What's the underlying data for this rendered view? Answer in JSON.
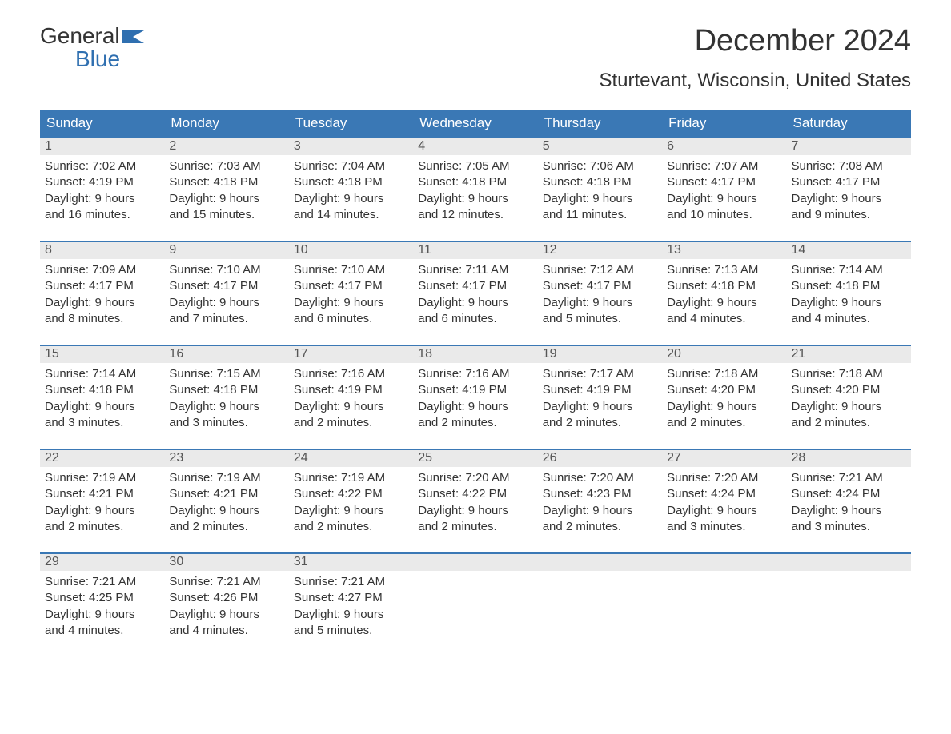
{
  "logo": {
    "word1": "General",
    "word2": "Blue",
    "icon_color": "#2f6fb0"
  },
  "title": "December 2024",
  "location": "Sturtevant, Wisconsin, United States",
  "colors": {
    "header_bg": "#3a78b5",
    "header_text": "#ffffff",
    "daynum_bg": "#eaeaea",
    "daynum_border": "#3a78b5",
    "body_text": "#333333",
    "page_bg": "#ffffff"
  },
  "day_headers": [
    "Sunday",
    "Monday",
    "Tuesday",
    "Wednesday",
    "Thursday",
    "Friday",
    "Saturday"
  ],
  "weeks": [
    [
      {
        "n": "1",
        "sunrise": "Sunrise: 7:02 AM",
        "sunset": "Sunset: 4:19 PM",
        "day1": "Daylight: 9 hours",
        "day2": "and 16 minutes."
      },
      {
        "n": "2",
        "sunrise": "Sunrise: 7:03 AM",
        "sunset": "Sunset: 4:18 PM",
        "day1": "Daylight: 9 hours",
        "day2": "and 15 minutes."
      },
      {
        "n": "3",
        "sunrise": "Sunrise: 7:04 AM",
        "sunset": "Sunset: 4:18 PM",
        "day1": "Daylight: 9 hours",
        "day2": "and 14 minutes."
      },
      {
        "n": "4",
        "sunrise": "Sunrise: 7:05 AM",
        "sunset": "Sunset: 4:18 PM",
        "day1": "Daylight: 9 hours",
        "day2": "and 12 minutes."
      },
      {
        "n": "5",
        "sunrise": "Sunrise: 7:06 AM",
        "sunset": "Sunset: 4:18 PM",
        "day1": "Daylight: 9 hours",
        "day2": "and 11 minutes."
      },
      {
        "n": "6",
        "sunrise": "Sunrise: 7:07 AM",
        "sunset": "Sunset: 4:17 PM",
        "day1": "Daylight: 9 hours",
        "day2": "and 10 minutes."
      },
      {
        "n": "7",
        "sunrise": "Sunrise: 7:08 AM",
        "sunset": "Sunset: 4:17 PM",
        "day1": "Daylight: 9 hours",
        "day2": "and 9 minutes."
      }
    ],
    [
      {
        "n": "8",
        "sunrise": "Sunrise: 7:09 AM",
        "sunset": "Sunset: 4:17 PM",
        "day1": "Daylight: 9 hours",
        "day2": "and 8 minutes."
      },
      {
        "n": "9",
        "sunrise": "Sunrise: 7:10 AM",
        "sunset": "Sunset: 4:17 PM",
        "day1": "Daylight: 9 hours",
        "day2": "and 7 minutes."
      },
      {
        "n": "10",
        "sunrise": "Sunrise: 7:10 AM",
        "sunset": "Sunset: 4:17 PM",
        "day1": "Daylight: 9 hours",
        "day2": "and 6 minutes."
      },
      {
        "n": "11",
        "sunrise": "Sunrise: 7:11 AM",
        "sunset": "Sunset: 4:17 PM",
        "day1": "Daylight: 9 hours",
        "day2": "and 6 minutes."
      },
      {
        "n": "12",
        "sunrise": "Sunrise: 7:12 AM",
        "sunset": "Sunset: 4:17 PM",
        "day1": "Daylight: 9 hours",
        "day2": "and 5 minutes."
      },
      {
        "n": "13",
        "sunrise": "Sunrise: 7:13 AM",
        "sunset": "Sunset: 4:18 PM",
        "day1": "Daylight: 9 hours",
        "day2": "and 4 minutes."
      },
      {
        "n": "14",
        "sunrise": "Sunrise: 7:14 AM",
        "sunset": "Sunset: 4:18 PM",
        "day1": "Daylight: 9 hours",
        "day2": "and 4 minutes."
      }
    ],
    [
      {
        "n": "15",
        "sunrise": "Sunrise: 7:14 AM",
        "sunset": "Sunset: 4:18 PM",
        "day1": "Daylight: 9 hours",
        "day2": "and 3 minutes."
      },
      {
        "n": "16",
        "sunrise": "Sunrise: 7:15 AM",
        "sunset": "Sunset: 4:18 PM",
        "day1": "Daylight: 9 hours",
        "day2": "and 3 minutes."
      },
      {
        "n": "17",
        "sunrise": "Sunrise: 7:16 AM",
        "sunset": "Sunset: 4:19 PM",
        "day1": "Daylight: 9 hours",
        "day2": "and 2 minutes."
      },
      {
        "n": "18",
        "sunrise": "Sunrise: 7:16 AM",
        "sunset": "Sunset: 4:19 PM",
        "day1": "Daylight: 9 hours",
        "day2": "and 2 minutes."
      },
      {
        "n": "19",
        "sunrise": "Sunrise: 7:17 AM",
        "sunset": "Sunset: 4:19 PM",
        "day1": "Daylight: 9 hours",
        "day2": "and 2 minutes."
      },
      {
        "n": "20",
        "sunrise": "Sunrise: 7:18 AM",
        "sunset": "Sunset: 4:20 PM",
        "day1": "Daylight: 9 hours",
        "day2": "and 2 minutes."
      },
      {
        "n": "21",
        "sunrise": "Sunrise: 7:18 AM",
        "sunset": "Sunset: 4:20 PM",
        "day1": "Daylight: 9 hours",
        "day2": "and 2 minutes."
      }
    ],
    [
      {
        "n": "22",
        "sunrise": "Sunrise: 7:19 AM",
        "sunset": "Sunset: 4:21 PM",
        "day1": "Daylight: 9 hours",
        "day2": "and 2 minutes."
      },
      {
        "n": "23",
        "sunrise": "Sunrise: 7:19 AM",
        "sunset": "Sunset: 4:21 PM",
        "day1": "Daylight: 9 hours",
        "day2": "and 2 minutes."
      },
      {
        "n": "24",
        "sunrise": "Sunrise: 7:19 AM",
        "sunset": "Sunset: 4:22 PM",
        "day1": "Daylight: 9 hours",
        "day2": "and 2 minutes."
      },
      {
        "n": "25",
        "sunrise": "Sunrise: 7:20 AM",
        "sunset": "Sunset: 4:22 PM",
        "day1": "Daylight: 9 hours",
        "day2": "and 2 minutes."
      },
      {
        "n": "26",
        "sunrise": "Sunrise: 7:20 AM",
        "sunset": "Sunset: 4:23 PM",
        "day1": "Daylight: 9 hours",
        "day2": "and 2 minutes."
      },
      {
        "n": "27",
        "sunrise": "Sunrise: 7:20 AM",
        "sunset": "Sunset: 4:24 PM",
        "day1": "Daylight: 9 hours",
        "day2": "and 3 minutes."
      },
      {
        "n": "28",
        "sunrise": "Sunrise: 7:21 AM",
        "sunset": "Sunset: 4:24 PM",
        "day1": "Daylight: 9 hours",
        "day2": "and 3 minutes."
      }
    ],
    [
      {
        "n": "29",
        "sunrise": "Sunrise: 7:21 AM",
        "sunset": "Sunset: 4:25 PM",
        "day1": "Daylight: 9 hours",
        "day2": "and 4 minutes."
      },
      {
        "n": "30",
        "sunrise": "Sunrise: 7:21 AM",
        "sunset": "Sunset: 4:26 PM",
        "day1": "Daylight: 9 hours",
        "day2": "and 4 minutes."
      },
      {
        "n": "31",
        "sunrise": "Sunrise: 7:21 AM",
        "sunset": "Sunset: 4:27 PM",
        "day1": "Daylight: 9 hours",
        "day2": "and 5 minutes."
      },
      {
        "empty": true
      },
      {
        "empty": true
      },
      {
        "empty": true
      },
      {
        "empty": true
      }
    ]
  ]
}
